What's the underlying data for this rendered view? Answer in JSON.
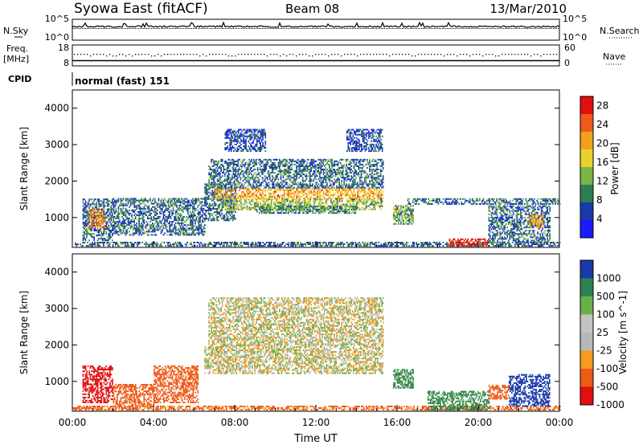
{
  "header": {
    "station": "Syowa East (fitACF)",
    "beam": "Beam 08",
    "date": "13/Mar/2010"
  },
  "status_panel": {
    "nsky_label": "N.Sky",
    "nsearch_label": "N.Search",
    "nsky_ticks": [
      "10^5",
      "10^0"
    ],
    "nsearch_ticks": [
      "10^5",
      "10^0"
    ],
    "freq_label": "Freq.",
    "freq_unit": "[MHz]",
    "freq_ticks": [
      "18",
      "8"
    ],
    "nave_label": "Nave",
    "nave_ticks": [
      "60",
      "0"
    ],
    "cpid_label": "CPID",
    "cpid_value": "normal (fast) 151"
  },
  "colors": {
    "power": [
      "#1a1aff",
      "#1a3aa8",
      "#2e7d52",
      "#79b447",
      "#e8d22a",
      "#f2a11c",
      "#ee5a18",
      "#e01010"
    ],
    "velocity": [
      "#e01010",
      "#ee5a18",
      "#f59a1c",
      "#b8b8b8",
      "#c2c2c2",
      "#6ab04a",
      "#2f8050",
      "#1a3aa8"
    ]
  },
  "chart_data": [
    {
      "type": "heatmap",
      "name": "power",
      "ylabel": "Slant Range [km]",
      "xlabel": "",
      "xlim": [
        0,
        24
      ],
      "ylim": [
        180,
        4500
      ],
      "y_ticks": [
        "1000",
        "2000",
        "3000",
        "4000"
      ],
      "x_ticks": [
        "00:00",
        "04:00",
        "08:00",
        "12:00",
        "16:00",
        "20:00",
        "00:00"
      ],
      "colorbar": {
        "label": "Power [dB]",
        "ticks": [
          "4",
          "8",
          "12",
          "16",
          "20",
          "24",
          "28"
        ],
        "range": [
          0,
          30
        ]
      },
      "regions": [
        {
          "x": [
            0.0,
            24.0
          ],
          "y": [
            200,
            320
          ],
          "value": 8
        },
        {
          "x": [
            0.5,
            2.0
          ],
          "y": [
            350,
            1500
          ],
          "value": 8
        },
        {
          "x": [
            0.8,
            1.6
          ],
          "y": [
            700,
            1200
          ],
          "value": 22
        },
        {
          "x": [
            2.0,
            6.5
          ],
          "y": [
            500,
            1500
          ],
          "value": 8
        },
        {
          "x": [
            6.5,
            8.0
          ],
          "y": [
            900,
            1900
          ],
          "value": 8
        },
        {
          "x": [
            7.0,
            15.3
          ],
          "y": [
            1500,
            1800
          ],
          "value": 20
        },
        {
          "x": [
            7.5,
            15.3
          ],
          "y": [
            1200,
            1500
          ],
          "value": 14
        },
        {
          "x": [
            9.0,
            14.0
          ],
          "y": [
            1100,
            1300
          ],
          "value": 10
        },
        {
          "x": [
            6.7,
            15.3
          ],
          "y": [
            1800,
            2600
          ],
          "value": 8
        },
        {
          "x": [
            7.5,
            9.5
          ],
          "y": [
            2800,
            3400
          ],
          "value": 6
        },
        {
          "x": [
            13.5,
            15.3
          ],
          "y": [
            2800,
            3400
          ],
          "value": 6
        },
        {
          "x": [
            15.8,
            16.8
          ],
          "y": [
            800,
            1300
          ],
          "value": 12
        },
        {
          "x": [
            16.5,
            24.0
          ],
          "y": [
            1350,
            1500
          ],
          "value": 8
        },
        {
          "x": [
            18.5,
            20.5
          ],
          "y": [
            200,
            420
          ],
          "value": 28
        },
        {
          "x": [
            20.5,
            23.5
          ],
          "y": [
            300,
            1300
          ],
          "value": 8
        },
        {
          "x": [
            22.5,
            23.2
          ],
          "y": [
            700,
            1100
          ],
          "value": 20
        }
      ]
    },
    {
      "type": "heatmap",
      "name": "velocity",
      "ylabel": "Slant Range [km]",
      "xlabel": "Time UT",
      "xlim": [
        0,
        24
      ],
      "ylim": [
        180,
        4500
      ],
      "y_ticks": [
        "1000",
        "2000",
        "3000",
        "4000"
      ],
      "x_ticks": [
        "00:00",
        "04:00",
        "08:00",
        "12:00",
        "16:00",
        "20:00",
        "00:00"
      ],
      "colorbar": {
        "label": "Velocity [m s^-1]",
        "ticks": [
          "1000",
          "500",
          "100",
          "25",
          "-25",
          "-100",
          "-500",
          "-1000"
        ],
        "range": [
          -1000,
          1000
        ]
      },
      "regions": [
        {
          "x": [
            0.0,
            24.0
          ],
          "y": [
            200,
            320
          ],
          "value": -150
        },
        {
          "x": [
            0.5,
            2.0
          ],
          "y": [
            400,
            1400
          ],
          "value": -600
        },
        {
          "x": [
            2.0,
            4.0
          ],
          "y": [
            300,
            900
          ],
          "value": -200
        },
        {
          "x": [
            4.0,
            6.2
          ],
          "y": [
            400,
            1400
          ],
          "value": -300
        },
        {
          "x": [
            6.5,
            15.3
          ],
          "y": [
            1200,
            2000
          ],
          "value": 0
        },
        {
          "x": [
            6.7,
            15.3
          ],
          "y": [
            2000,
            3300
          ],
          "value": 0
        },
        {
          "x": [
            15.8,
            16.8
          ],
          "y": [
            800,
            1300
          ],
          "value": 150
        },
        {
          "x": [
            17.5,
            20.5
          ],
          "y": [
            200,
            700
          ],
          "value": 150
        },
        {
          "x": [
            21.5,
            23.5
          ],
          "y": [
            300,
            1200
          ],
          "value": 600
        },
        {
          "x": [
            20.5,
            21.5
          ],
          "y": [
            500,
            900
          ],
          "value": -300
        }
      ]
    }
  ]
}
